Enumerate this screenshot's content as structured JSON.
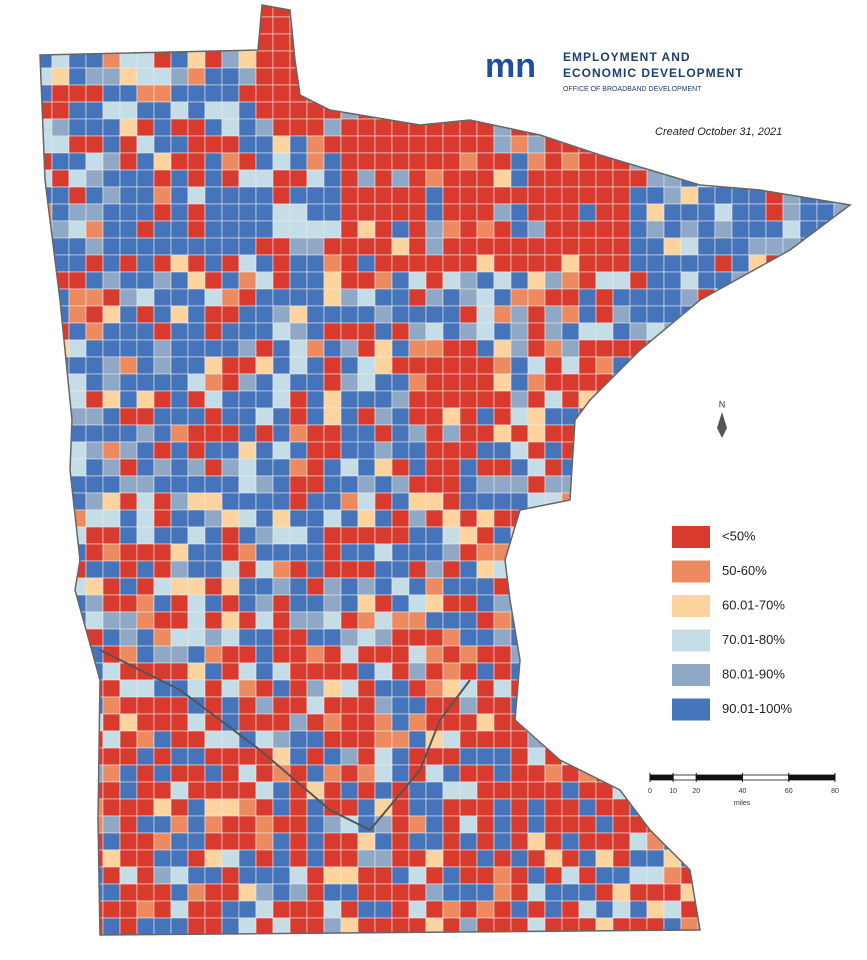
{
  "header": {
    "logo": "mn",
    "agency": "EMPLOYMENT AND",
    "agency_line2": "ECONOMIC DEVELOPMENT",
    "office": "OFFICE OF BROADBAND DEVELOPMENT",
    "created": "Created October 31, 2021"
  },
  "legend": [
    {
      "label": "<50%",
      "color": "#d93a2e"
    },
    {
      "label": "50-60%",
      "color": "#ee8a5f"
    },
    {
      "label": "60.01-70%",
      "color": "#fdd49e"
    },
    {
      "label": "70.01-80%",
      "color": "#c5dde6"
    },
    {
      "label": "80.01-90%",
      "color": "#8fa8c6"
    },
    {
      "label": "90.01-100%",
      "color": "#4674bb"
    }
  ],
  "scale_bar": {
    "ticks": [
      0,
      10,
      20,
      40,
      60,
      80
    ],
    "unit": "miles"
  },
  "north_arrow": "N"
}
